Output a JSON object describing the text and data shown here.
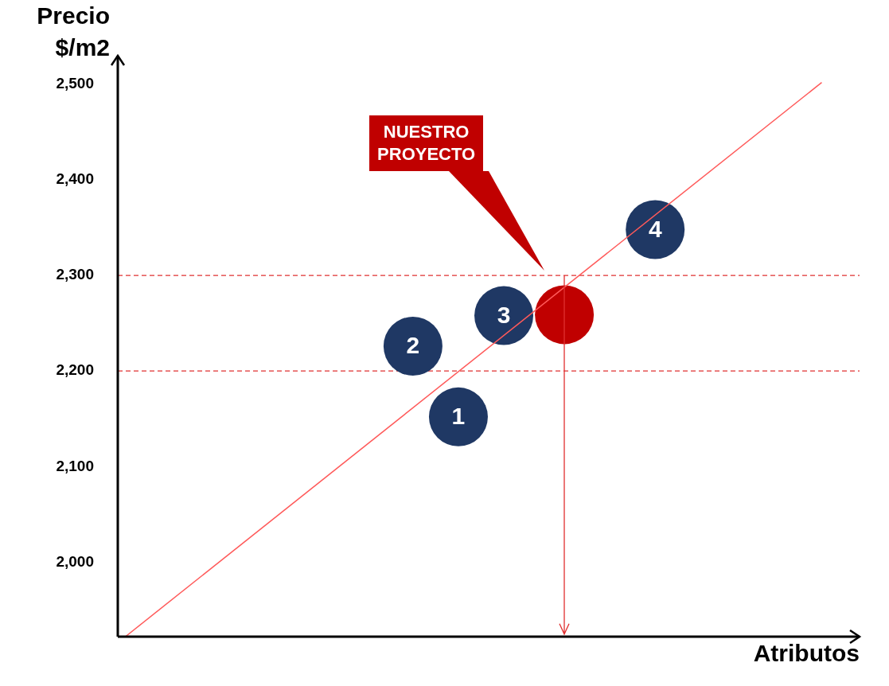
{
  "chart_data": {
    "type": "scatter",
    "xlabel": "Atributos",
    "ylabel": "Precio\n$/m2",
    "categories": [
      null,
      null,
      null,
      null,
      null,
      null,
      null,
      null,
      null,
      null,
      null,
      null,
      null,
      null,
      null,
      null,
      null,
      null,
      null,
      null,
      null,
      null,
      null,
      null,
      null,
      null,
      null,
      null,
      null,
      null,
      null,
      null,
      null,
      null,
      null,
      null,
      null,
      null,
      null,
      null,
      null,
      null,
      null,
      null,
      null,
      null,
      null,
      null,
      null
    ],
    "ylim": [
      1922,
      2530
    ],
    "yticks": [
      {
        "value": 2000,
        "label": "2,000"
      },
      {
        "value": 2100,
        "label": "2,100"
      },
      {
        "value": 2200,
        "label": "2,200"
      },
      {
        "value": 2300,
        "label": "2,300"
      },
      {
        "value": 2400,
        "label": "2,400"
      },
      {
        "value": 2500,
        "label": "2,500"
      }
    ],
    "tick_labels": "y",
    "grid": false,
    "legend": false,
    "marker": "circle",
    "series": [
      {
        "type": "line",
        "color": "#ff5a5a",
        "values": [
          1922,
          null,
          null,
          null,
          null,
          null,
          null,
          null,
          null,
          null,
          null,
          null,
          null,
          null,
          null,
          null,
          null,
          null,
          null,
          null,
          null,
          null,
          null,
          null,
          null,
          null,
          null,
          null,
          null,
          null,
          null,
          null,
          null,
          null,
          null,
          null,
          null,
          null,
          null,
          null,
          null,
          null,
          null,
          null,
          null,
          null,
          2502,
          null,
          null
        ],
        "marker": "none",
        "line_style": "solid"
      },
      {
        "name": "1",
        "color": "#1f3864",
        "values": [
          null,
          null,
          null,
          null,
          null,
          null,
          null,
          null,
          null,
          null,
          null,
          null,
          null,
          null,
          null,
          null,
          null,
          null,
          null,
          null,
          null,
          null,
          2152,
          null,
          null,
          null,
          null,
          null,
          null,
          null,
          null,
          null,
          null,
          null,
          null,
          null,
          null,
          null,
          null,
          null,
          null,
          null,
          null,
          null,
          null,
          null,
          null,
          null,
          null
        ]
      },
      {
        "name": "2",
        "color": "#1f3864",
        "values": [
          null,
          null,
          null,
          null,
          null,
          null,
          null,
          null,
          null,
          null,
          null,
          null,
          null,
          null,
          null,
          null,
          null,
          null,
          null,
          2226,
          null,
          null,
          null,
          null,
          null,
          null,
          null,
          null,
          null,
          null,
          null,
          null,
          null,
          null,
          null,
          null,
          null,
          null,
          null,
          null,
          null,
          null,
          null,
          null,
          null,
          null,
          null,
          null,
          null
        ]
      },
      {
        "name": "3",
        "color": "#1f3864",
        "values": [
          null,
          null,
          null,
          null,
          null,
          null,
          null,
          null,
          null,
          null,
          null,
          null,
          null,
          null,
          null,
          null,
          null,
          null,
          null,
          null,
          null,
          null,
          null,
          null,
          null,
          2258,
          null,
          null,
          null,
          null,
          null,
          null,
          null,
          null,
          null,
          null,
          null,
          null,
          null,
          null,
          null,
          null,
          null,
          null,
          null,
          null,
          null,
          null,
          null
        ]
      },
      {
        "name": "4",
        "color": "#1f3864",
        "values": [
          null,
          null,
          null,
          null,
          null,
          null,
          null,
          null,
          null,
          null,
          null,
          null,
          null,
          null,
          null,
          null,
          null,
          null,
          null,
          null,
          null,
          null,
          null,
          null,
          null,
          null,
          null,
          null,
          null,
          null,
          null,
          null,
          null,
          null,
          null,
          2348,
          null,
          null,
          null,
          null,
          null,
          null,
          null,
          null,
          null,
          null,
          null,
          null,
          null
        ]
      },
      {
        "color": "#c00000",
        "values": [
          null,
          null,
          null,
          null,
          null,
          null,
          null,
          null,
          null,
          null,
          null,
          null,
          null,
          null,
          null,
          null,
          null,
          null,
          null,
          null,
          null,
          null,
          null,
          null,
          null,
          null,
          null,
          null,
          null,
          2259,
          null,
          null,
          null,
          null,
          null,
          null,
          null,
          null,
          null,
          null,
          null,
          null,
          null,
          null,
          null,
          null,
          null,
          null,
          null
        ]
      }
    ],
    "ref_lines": [
      {
        "axis": "y",
        "value": 2300,
        "color": "#e03030",
        "line_style": "dashed"
      },
      {
        "axis": "y",
        "value": 2200,
        "color": "#e03030",
        "line_style": "dashed"
      }
    ],
    "annotations": [
      "NUESTRO\nPROYECTO"
    ]
  }
}
